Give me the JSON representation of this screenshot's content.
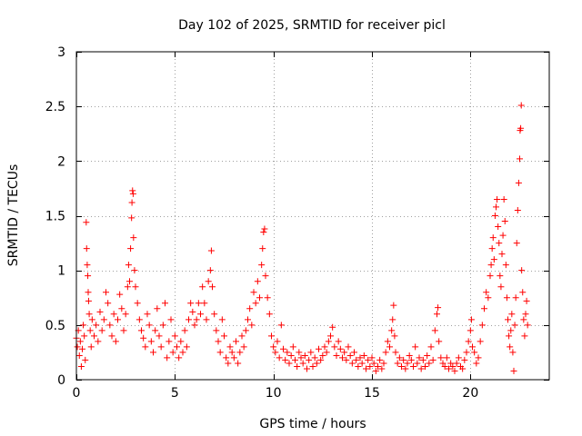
{
  "chart_data": {
    "type": "scatter",
    "title": "Day 102 of 2025, SRMTID for receiver picl",
    "xlabel": "GPS time / hours",
    "ylabel": "SRMTID / TECUs",
    "xlim": [
      0,
      24
    ],
    "ylim": [
      0,
      3
    ],
    "xticks": [
      "0",
      "5",
      "10",
      "15",
      "20"
    ],
    "xtick_values": [
      0,
      5,
      10,
      15,
      20
    ],
    "yticks": [
      "0",
      "0.5",
      "1",
      "1.5",
      "2",
      "2.5",
      "3"
    ],
    "ytick_values": [
      0,
      0.5,
      1,
      1.5,
      2,
      2.5,
      3
    ],
    "grid": true,
    "marker": "plus",
    "color": "#ff0000",
    "series": [
      {
        "name": "SRMTID",
        "points": [
          [
            0.0,
            0.38
          ],
          [
            0.05,
            0.3
          ],
          [
            0.1,
            0.45
          ],
          [
            0.15,
            0.22
          ],
          [
            0.2,
            0.35
          ],
          [
            0.25,
            0.12
          ],
          [
            0.3,
            0.28
          ],
          [
            0.35,
            0.5
          ],
          [
            0.4,
            0.4
          ],
          [
            0.45,
            0.18
          ],
          [
            0.5,
            1.44
          ],
          [
            0.52,
            1.2
          ],
          [
            0.55,
            1.05
          ],
          [
            0.58,
            0.95
          ],
          [
            0.6,
            0.8
          ],
          [
            0.62,
            0.72
          ],
          [
            0.65,
            0.6
          ],
          [
            0.7,
            0.45
          ],
          [
            0.75,
            0.3
          ],
          [
            0.8,
            0.55
          ],
          [
            0.9,
            0.4
          ],
          [
            1.0,
            0.5
          ],
          [
            1.1,
            0.35
          ],
          [
            1.2,
            0.62
          ],
          [
            1.3,
            0.45
          ],
          [
            1.4,
            0.55
          ],
          [
            1.5,
            0.8
          ],
          [
            1.6,
            0.7
          ],
          [
            1.7,
            0.5
          ],
          [
            1.8,
            0.4
          ],
          [
            1.9,
            0.6
          ],
          [
            2.0,
            0.35
          ],
          [
            2.1,
            0.55
          ],
          [
            2.2,
            0.78
          ],
          [
            2.3,
            0.65
          ],
          [
            2.4,
            0.45
          ],
          [
            2.5,
            0.6
          ],
          [
            2.6,
            0.85
          ],
          [
            2.65,
            1.05
          ],
          [
            2.7,
            0.9
          ],
          [
            2.75,
            1.2
          ],
          [
            2.8,
            1.48
          ],
          [
            2.82,
            1.62
          ],
          [
            2.85,
            1.73
          ],
          [
            2.88,
            1.7
          ],
          [
            2.9,
            1.3
          ],
          [
            2.95,
            1.0
          ],
          [
            3.0,
            0.85
          ],
          [
            3.1,
            0.7
          ],
          [
            3.2,
            0.55
          ],
          [
            3.3,
            0.45
          ],
          [
            3.4,
            0.38
          ],
          [
            3.5,
            0.3
          ],
          [
            3.6,
            0.6
          ],
          [
            3.7,
            0.5
          ],
          [
            3.8,
            0.35
          ],
          [
            3.9,
            0.25
          ],
          [
            4.0,
            0.45
          ],
          [
            4.1,
            0.65
          ],
          [
            4.2,
            0.4
          ],
          [
            4.3,
            0.3
          ],
          [
            4.4,
            0.5
          ],
          [
            4.5,
            0.7
          ],
          [
            4.6,
            0.2
          ],
          [
            4.7,
            0.35
          ],
          [
            4.8,
            0.55
          ],
          [
            4.9,
            0.25
          ],
          [
            5.0,
            0.4
          ],
          [
            5.1,
            0.3
          ],
          [
            5.2,
            0.2
          ],
          [
            5.3,
            0.35
          ],
          [
            5.4,
            0.25
          ],
          [
            5.5,
            0.45
          ],
          [
            5.6,
            0.3
          ],
          [
            5.7,
            0.55
          ],
          [
            5.8,
            0.7
          ],
          [
            5.9,
            0.62
          ],
          [
            6.0,
            0.5
          ],
          [
            6.1,
            0.55
          ],
          [
            6.2,
            0.7
          ],
          [
            6.3,
            0.6
          ],
          [
            6.4,
            0.85
          ],
          [
            6.5,
            0.7
          ],
          [
            6.6,
            0.55
          ],
          [
            6.7,
            0.9
          ],
          [
            6.8,
            1.0
          ],
          [
            6.85,
            1.18
          ],
          [
            6.9,
            0.85
          ],
          [
            7.0,
            0.6
          ],
          [
            7.1,
            0.45
          ],
          [
            7.2,
            0.35
          ],
          [
            7.3,
            0.25
          ],
          [
            7.4,
            0.55
          ],
          [
            7.5,
            0.4
          ],
          [
            7.6,
            0.2
          ],
          [
            7.7,
            0.15
          ],
          [
            7.8,
            0.3
          ],
          [
            7.9,
            0.25
          ],
          [
            8.0,
            0.2
          ],
          [
            8.1,
            0.35
          ],
          [
            8.2,
            0.15
          ],
          [
            8.3,
            0.25
          ],
          [
            8.4,
            0.4
          ],
          [
            8.5,
            0.3
          ],
          [
            8.6,
            0.45
          ],
          [
            8.7,
            0.55
          ],
          [
            8.8,
            0.65
          ],
          [
            8.9,
            0.5
          ],
          [
            9.0,
            0.8
          ],
          [
            9.1,
            0.7
          ],
          [
            9.2,
            0.9
          ],
          [
            9.3,
            0.75
          ],
          [
            9.4,
            1.05
          ],
          [
            9.45,
            1.2
          ],
          [
            9.5,
            1.35
          ],
          [
            9.55,
            1.38
          ],
          [
            9.6,
            0.95
          ],
          [
            9.7,
            0.75
          ],
          [
            9.8,
            0.6
          ],
          [
            9.9,
            0.4
          ],
          [
            10.0,
            0.3
          ],
          [
            10.1,
            0.25
          ],
          [
            10.2,
            0.35
          ],
          [
            10.3,
            0.2
          ],
          [
            10.4,
            0.5
          ],
          [
            10.5,
            0.28
          ],
          [
            10.6,
            0.18
          ],
          [
            10.7,
            0.25
          ],
          [
            10.8,
            0.15
          ],
          [
            10.9,
            0.22
          ],
          [
            11.0,
            0.3
          ],
          [
            11.1,
            0.18
          ],
          [
            11.2,
            0.12
          ],
          [
            11.3,
            0.25
          ],
          [
            11.4,
            0.2
          ],
          [
            11.5,
            0.15
          ],
          [
            11.6,
            0.22
          ],
          [
            11.7,
            0.1
          ],
          [
            11.8,
            0.18
          ],
          [
            11.9,
            0.25
          ],
          [
            12.0,
            0.12
          ],
          [
            12.1,
            0.2
          ],
          [
            12.2,
            0.15
          ],
          [
            12.3,
            0.28
          ],
          [
            12.4,
            0.18
          ],
          [
            12.5,
            0.22
          ],
          [
            12.6,
            0.3
          ],
          [
            12.7,
            0.25
          ],
          [
            12.8,
            0.35
          ],
          [
            12.9,
            0.4
          ],
          [
            13.0,
            0.48
          ],
          [
            13.1,
            0.3
          ],
          [
            13.2,
            0.22
          ],
          [
            13.3,
            0.35
          ],
          [
            13.4,
            0.28
          ],
          [
            13.5,
            0.2
          ],
          [
            13.6,
            0.25
          ],
          [
            13.7,
            0.18
          ],
          [
            13.8,
            0.3
          ],
          [
            13.9,
            0.22
          ],
          [
            14.0,
            0.15
          ],
          [
            14.1,
            0.25
          ],
          [
            14.2,
            0.18
          ],
          [
            14.3,
            0.12
          ],
          [
            14.4,
            0.2
          ],
          [
            14.5,
            0.15
          ],
          [
            14.6,
            0.22
          ],
          [
            14.7,
            0.1
          ],
          [
            14.8,
            0.18
          ],
          [
            14.9,
            0.12
          ],
          [
            15.0,
            0.2
          ],
          [
            15.1,
            0.15
          ],
          [
            15.2,
            0.08
          ],
          [
            15.3,
            0.12
          ],
          [
            15.4,
            0.18
          ],
          [
            15.5,
            0.1
          ],
          [
            15.6,
            0.15
          ],
          [
            15.7,
            0.25
          ],
          [
            15.8,
            0.35
          ],
          [
            15.9,
            0.3
          ],
          [
            16.0,
            0.45
          ],
          [
            16.05,
            0.55
          ],
          [
            16.1,
            0.68
          ],
          [
            16.15,
            0.4
          ],
          [
            16.2,
            0.25
          ],
          [
            16.3,
            0.15
          ],
          [
            16.4,
            0.2
          ],
          [
            16.5,
            0.12
          ],
          [
            16.6,
            0.18
          ],
          [
            16.7,
            0.1
          ],
          [
            16.8,
            0.15
          ],
          [
            16.9,
            0.22
          ],
          [
            17.0,
            0.18
          ],
          [
            17.1,
            0.12
          ],
          [
            17.2,
            0.3
          ],
          [
            17.3,
            0.15
          ],
          [
            17.4,
            0.2
          ],
          [
            17.5,
            0.1
          ],
          [
            17.6,
            0.18
          ],
          [
            17.7,
            0.12
          ],
          [
            17.8,
            0.22
          ],
          [
            17.9,
            0.15
          ],
          [
            18.0,
            0.3
          ],
          [
            18.1,
            0.18
          ],
          [
            18.2,
            0.45
          ],
          [
            18.3,
            0.6
          ],
          [
            18.35,
            0.66
          ],
          [
            18.4,
            0.35
          ],
          [
            18.5,
            0.2
          ],
          [
            18.6,
            0.15
          ],
          [
            18.7,
            0.12
          ],
          [
            18.8,
            0.2
          ],
          [
            18.9,
            0.1
          ],
          [
            19.0,
            0.15
          ],
          [
            19.1,
            0.12
          ],
          [
            19.2,
            0.08
          ],
          [
            19.3,
            0.15
          ],
          [
            19.4,
            0.2
          ],
          [
            19.5,
            0.12
          ],
          [
            19.6,
            0.1
          ],
          [
            19.7,
            0.18
          ],
          [
            19.8,
            0.25
          ],
          [
            19.9,
            0.35
          ],
          [
            20.0,
            0.45
          ],
          [
            20.05,
            0.55
          ],
          [
            20.1,
            0.3
          ],
          [
            20.2,
            0.25
          ],
          [
            20.3,
            0.15
          ],
          [
            20.4,
            0.2
          ],
          [
            20.5,
            0.35
          ],
          [
            20.6,
            0.5
          ],
          [
            20.7,
            0.65
          ],
          [
            20.8,
            0.8
          ],
          [
            20.9,
            0.75
          ],
          [
            21.0,
            0.95
          ],
          [
            21.05,
            1.05
          ],
          [
            21.1,
            1.2
          ],
          [
            21.15,
            1.3
          ],
          [
            21.2,
            1.1
          ],
          [
            21.25,
            1.5
          ],
          [
            21.3,
            1.58
          ],
          [
            21.35,
            1.65
          ],
          [
            21.4,
            1.4
          ],
          [
            21.45,
            1.25
          ],
          [
            21.5,
            0.95
          ],
          [
            21.55,
            0.85
          ],
          [
            21.6,
            1.15
          ],
          [
            21.65,
            1.32
          ],
          [
            21.7,
            1.65
          ],
          [
            21.75,
            1.45
          ],
          [
            21.8,
            1.05
          ],
          [
            21.85,
            0.75
          ],
          [
            21.9,
            0.55
          ],
          [
            21.95,
            0.4
          ],
          [
            22.0,
            0.3
          ],
          [
            22.05,
            0.45
          ],
          [
            22.1,
            0.6
          ],
          [
            22.15,
            0.25
          ],
          [
            22.2,
            0.08
          ],
          [
            22.25,
            0.5
          ],
          [
            22.3,
            0.75
          ],
          [
            22.35,
            1.25
          ],
          [
            22.4,
            1.55
          ],
          [
            22.45,
            1.8
          ],
          [
            22.5,
            2.02
          ],
          [
            22.52,
            2.28
          ],
          [
            22.55,
            2.3
          ],
          [
            22.58,
            2.51
          ],
          [
            22.6,
            1.0
          ],
          [
            22.65,
            0.8
          ],
          [
            22.7,
            0.55
          ],
          [
            22.75,
            0.4
          ],
          [
            22.8,
            0.6
          ],
          [
            22.85,
            0.72
          ],
          [
            22.9,
            0.5
          ]
        ]
      }
    ]
  }
}
